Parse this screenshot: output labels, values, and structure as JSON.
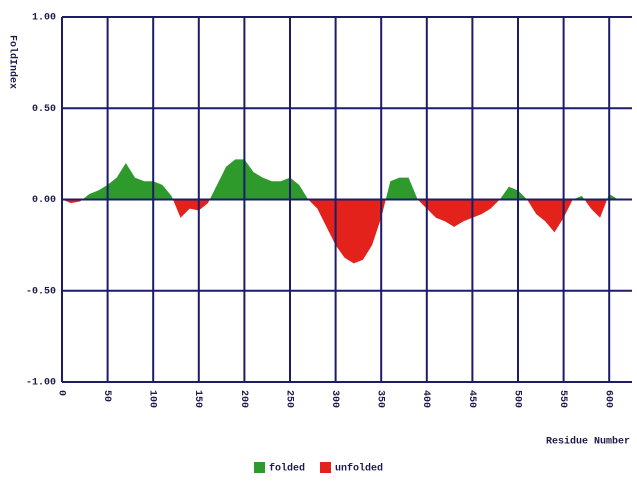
{
  "chart_data": {
    "type": "area",
    "ylabel": "FoldIndex",
    "xlabel": "Residue Number",
    "x": [
      0,
      10,
      20,
      30,
      40,
      50,
      60,
      70,
      80,
      90,
      100,
      110,
      120,
      130,
      140,
      150,
      160,
      170,
      180,
      190,
      200,
      210,
      220,
      230,
      240,
      250,
      260,
      270,
      280,
      290,
      300,
      310,
      320,
      330,
      340,
      350,
      360,
      370,
      380,
      390,
      400,
      410,
      420,
      430,
      440,
      450,
      460,
      470,
      480,
      490,
      500,
      510,
      520,
      530,
      540,
      550,
      560,
      570,
      580,
      590,
      600,
      610
    ],
    "values": [
      0,
      -0.02,
      -0.01,
      0.03,
      0.05,
      0.08,
      0.12,
      0.2,
      0.12,
      0.1,
      0.1,
      0.08,
      0.02,
      -0.1,
      -0.05,
      -0.06,
      -0.02,
      0.08,
      0.18,
      0.22,
      0.22,
      0.15,
      0.12,
      0.1,
      0.1,
      0.12,
      0.08,
      0.0,
      -0.05,
      -0.15,
      -0.25,
      -0.32,
      -0.35,
      -0.33,
      -0.25,
      -0.1,
      0.1,
      0.12,
      0.12,
      0.0,
      -0.05,
      -0.1,
      -0.12,
      -0.15,
      -0.12,
      -0.1,
      -0.08,
      -0.05,
      0.0,
      0.07,
      0.05,
      0.0,
      -0.08,
      -0.12,
      -0.18,
      -0.1,
      0.0,
      0.02,
      -0.05,
      -0.1,
      0.03,
      0.0
    ],
    "legend": [
      {
        "name": "folded",
        "color": "#2f9a2c"
      },
      {
        "name": "unfolded",
        "color": "#e2221b"
      }
    ],
    "xlim": [
      0,
      625
    ],
    "xticks": [
      0,
      50,
      100,
      150,
      200,
      250,
      300,
      350,
      400,
      450,
      500,
      550,
      600
    ],
    "ylim": [
      -1,
      1
    ],
    "yticks": [
      {
        "value": -1,
        "label": "-1.00"
      },
      {
        "value": -0.5,
        "label": "-0.50"
      },
      {
        "value": 0,
        "label": "0.00"
      },
      {
        "value": 0.5,
        "label": "0.50"
      },
      {
        "value": 1,
        "label": "1.00"
      }
    ],
    "grid": true,
    "grid_color": "#1c1c6a"
  }
}
